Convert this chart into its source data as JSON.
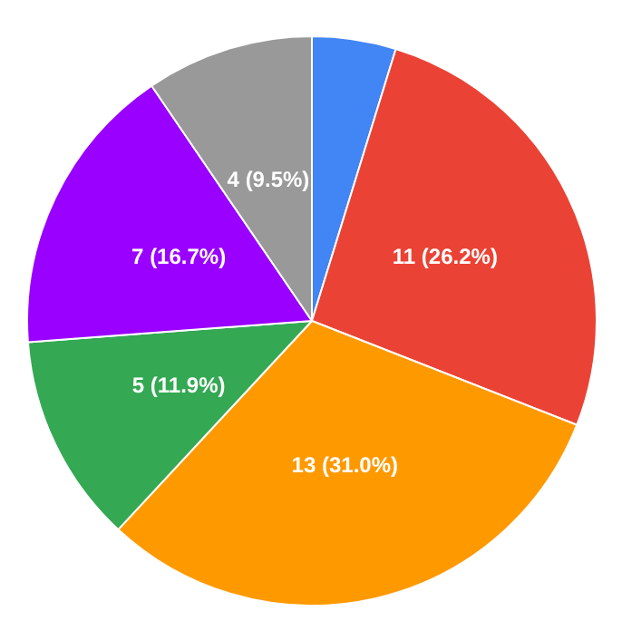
{
  "chart_data": {
    "type": "pie",
    "categories": [
      null,
      null,
      null,
      null,
      null,
      null
    ],
    "values": [
      2,
      11,
      13,
      5,
      7,
      4
    ],
    "colors": [
      "#4285f4",
      "#ea4335",
      "#ff9900",
      "#34a853",
      "#9900ff",
      "#999999"
    ],
    "value_labels": [
      null,
      "11 (26.2%)",
      "13 (31.0%)",
      "5 (11.9%)",
      "7 (16.7%)",
      "4 (9.5%)"
    ]
  }
}
